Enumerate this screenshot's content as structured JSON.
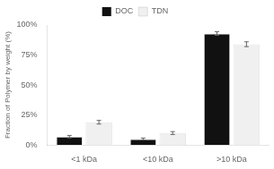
{
  "chart_data": {
    "type": "bar",
    "ylabel": "Fraction of Polymer by weight (%)",
    "categories": [
      "<1 kDa",
      "<10 kDa",
      ">10 kDa"
    ],
    "series": [
      {
        "name": "DOC",
        "color": "#111111",
        "values": [
          7,
          5,
          93
        ],
        "errors": [
          1.0,
          0.8,
          1.5
        ]
      },
      {
        "name": "TDN",
        "color": "#f0f0f0",
        "values": [
          19,
          10,
          84
        ],
        "errors": [
          1.5,
          1.2,
          2.0
        ]
      }
    ],
    "ylim": [
      0,
      100
    ],
    "yticks": [
      {
        "value": 0,
        "label": "0%"
      },
      {
        "value": 25,
        "label": "25%"
      },
      {
        "value": 50,
        "label": "50%"
      },
      {
        "value": 75,
        "label": "75%"
      },
      {
        "value": 100,
        "label": "100%"
      }
    ],
    "grid": false,
    "legend": "top"
  }
}
